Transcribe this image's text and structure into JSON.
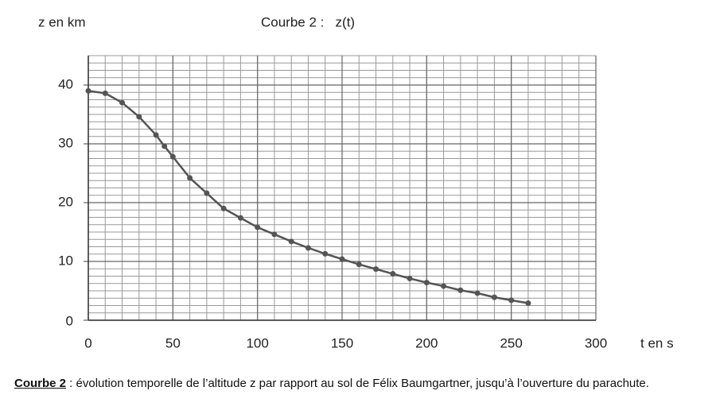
{
  "chart_data": {
    "type": "line",
    "title": "Courbe 2 :   z(t)",
    "y_label": "z en km",
    "x_label": "t en s",
    "caption": {
      "label": "Courbe 2",
      "text": " : évolution temporelle de l’altitude z par rapport au sol de Félix Baumgartner, jusqu’à l’ouverture du parachute."
    },
    "x": [
      0,
      10,
      20,
      30,
      40,
      45,
      50,
      60,
      70,
      80,
      90,
      100,
      110,
      120,
      130,
      140,
      150,
      160,
      170,
      180,
      190,
      200,
      210,
      220,
      230,
      240,
      250,
      260
    ],
    "series": [
      {
        "name": "z(t)",
        "color": "#555555",
        "values": [
          39,
          38.6,
          37,
          34.6,
          31.5,
          29.6,
          27.8,
          24.2,
          21.6,
          19,
          17.4,
          15.8,
          14.6,
          13.4,
          12.3,
          11.3,
          10.4,
          9.5,
          8.7,
          7.9,
          7.1,
          6.4,
          5.8,
          5.1,
          4.6,
          3.9,
          3.4,
          2.9
        ]
      }
    ],
    "xlim": [
      0,
      300
    ],
    "ylim": [
      0,
      45
    ],
    "xticks": [
      0,
      50,
      100,
      150,
      200,
      250,
      300
    ],
    "yticks": [
      0,
      10,
      20,
      30,
      40
    ],
    "grid": true
  }
}
